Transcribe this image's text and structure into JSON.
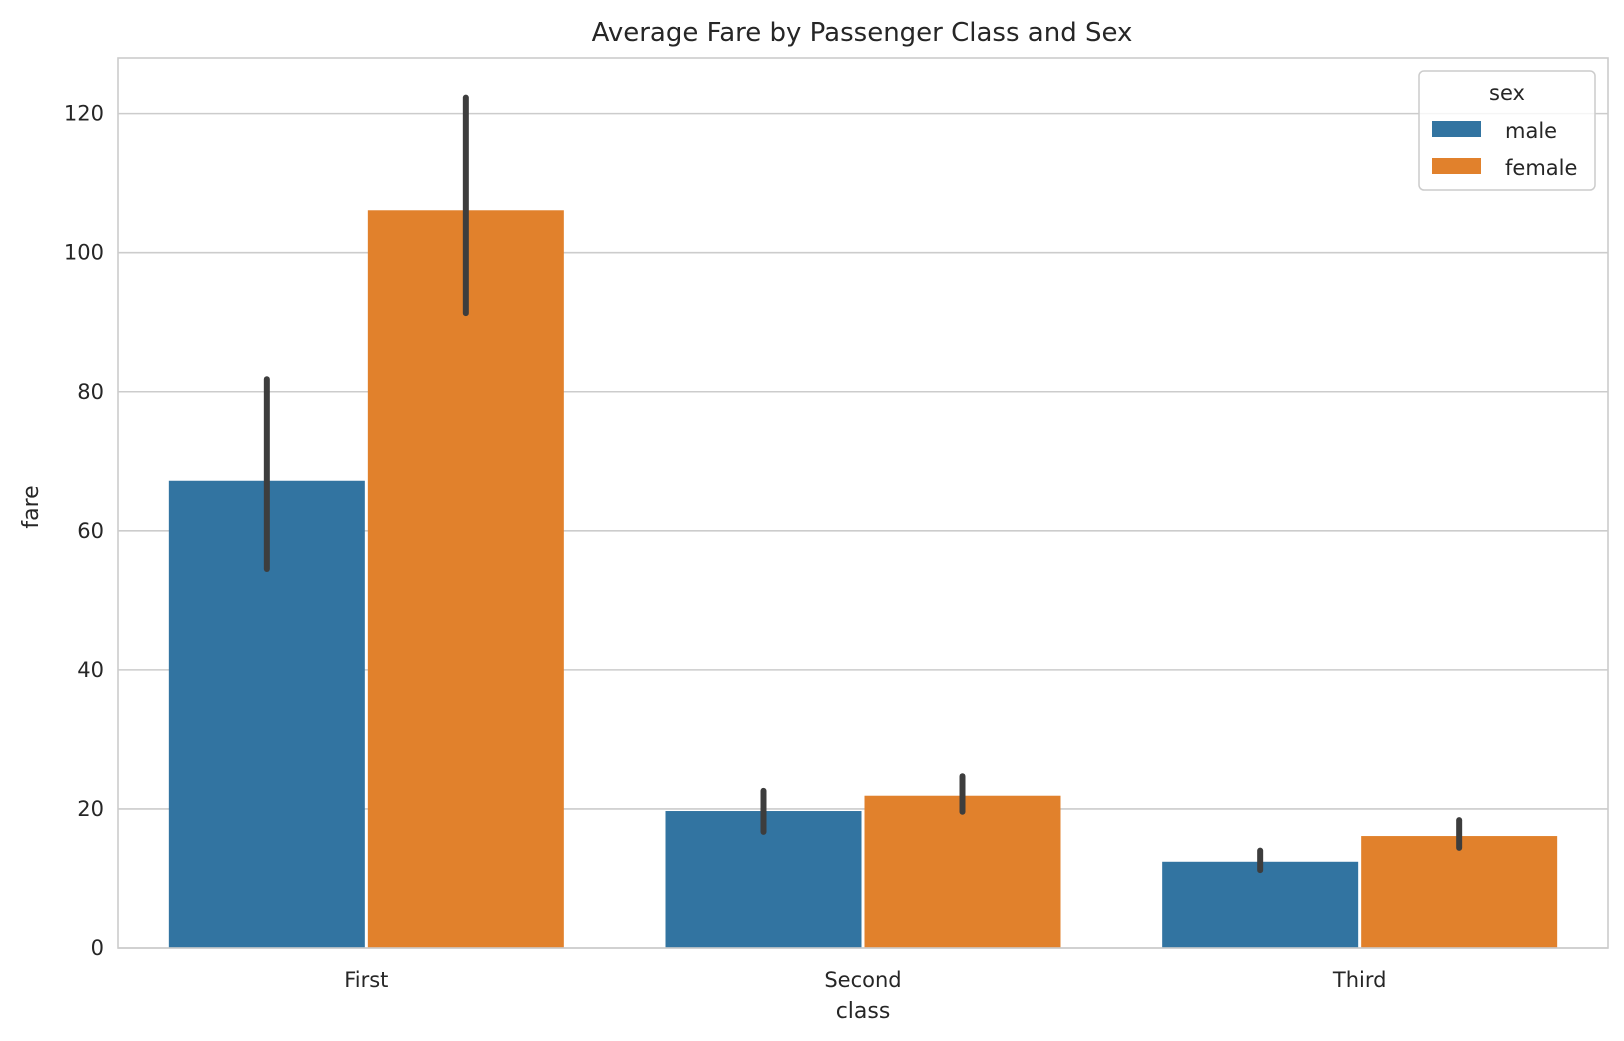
{
  "chart_data": {
    "type": "bar",
    "title": "Average Fare by Passenger Class and Sex",
    "xlabel": "class",
    "ylabel": "fare",
    "categories": [
      "First",
      "Second",
      "Third"
    ],
    "ylim": [
      0,
      128
    ],
    "yticks": [
      0,
      20,
      40,
      60,
      80,
      100,
      120
    ],
    "grid": true,
    "legend": {
      "title": "sex",
      "placement": "top-right"
    },
    "series": [
      {
        "name": "male",
        "color": "#3274a1",
        "values": [
          67.2,
          19.7,
          12.4
        ],
        "ci_low": [
          54.5,
          16.7,
          11.2
        ],
        "ci_high": [
          81.8,
          22.6,
          14.0
        ]
      },
      {
        "name": "female",
        "color": "#e1812c",
        "values": [
          106.1,
          21.9,
          16.1
        ],
        "ci_low": [
          91.3,
          19.6,
          14.4
        ],
        "ci_high": [
          122.3,
          24.7,
          18.4
        ]
      }
    ]
  }
}
